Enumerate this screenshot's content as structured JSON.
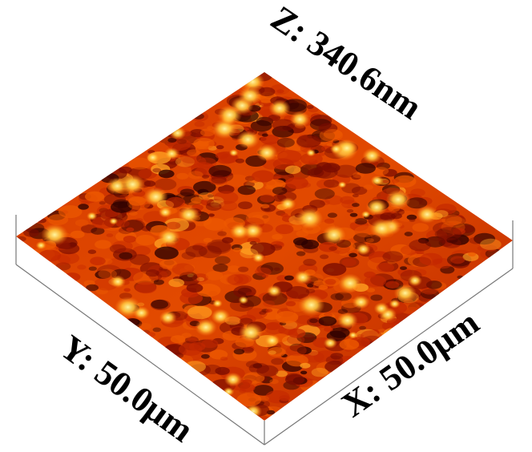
{
  "figure": {
    "z_label": "Z: 340.6nm",
    "y_label": "Y: 50.0µm",
    "x_label": "X: 50.0µm",
    "colormap": [
      "#2a0000",
      "#7a0c00",
      "#c42800",
      "#ee5a00",
      "#ffa020",
      "#fff27a"
    ]
  }
}
